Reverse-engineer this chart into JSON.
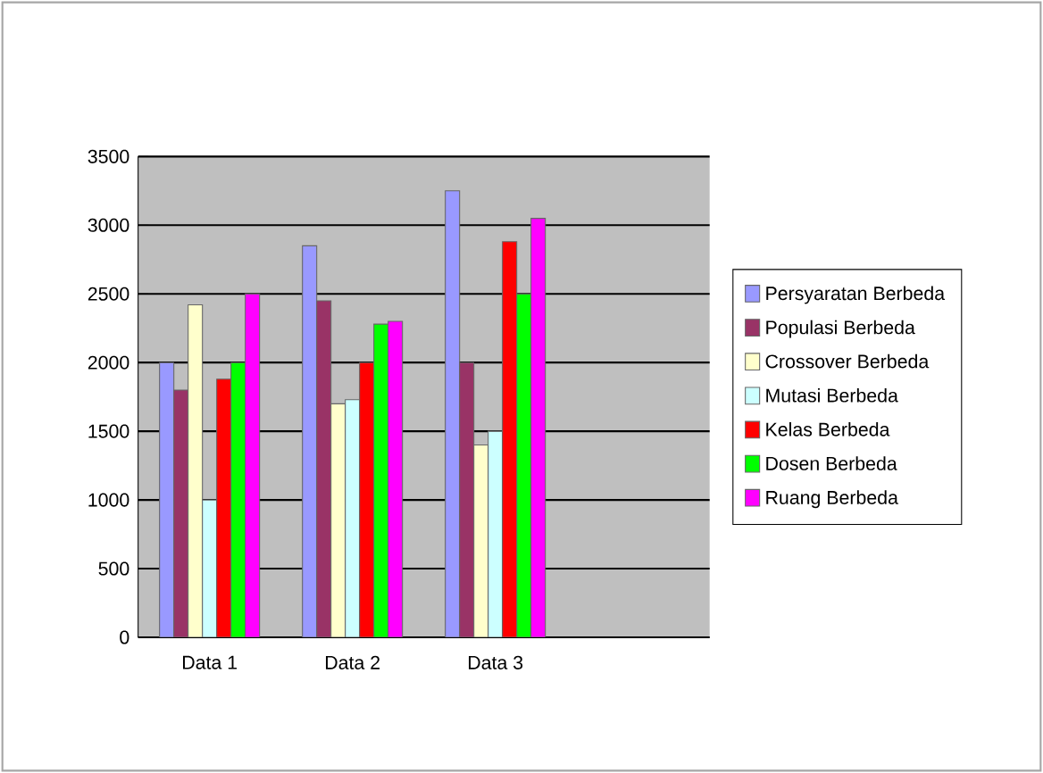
{
  "chart_data": {
    "type": "bar",
    "categories": [
      "Data 1",
      "Data 2",
      "Data 3",
      null
    ],
    "series": [
      {
        "name": "Persyaratan Berbeda",
        "color": "#9999ff",
        "values": [
          2000,
          2850,
          3250,
          null
        ]
      },
      {
        "name": "Populasi Berbeda",
        "color": "#993366",
        "values": [
          1800,
          2450,
          2000,
          null
        ]
      },
      {
        "name": "Crossover Berbeda",
        "color": "#ffffcc",
        "values": [
          2420,
          1700,
          1400,
          null
        ]
      },
      {
        "name": "Mutasi Berbeda",
        "color": "#ccffff",
        "values": [
          1000,
          1730,
          1500,
          null
        ]
      },
      {
        "name": "Kelas Berbeda",
        "color": "#ff0000",
        "values": [
          1880,
          2000,
          2880,
          null
        ]
      },
      {
        "name": "Dosen Berbeda",
        "color": "#00ff00",
        "values": [
          2000,
          2280,
          2500,
          null
        ]
      },
      {
        "name": "Ruang Berbeda",
        "color": "#ff00ff",
        "values": [
          2500,
          2300,
          3050,
          null
        ]
      }
    ],
    "ylim": [
      0,
      3500
    ],
    "yticks": [
      0,
      500,
      1000,
      1500,
      2000,
      2500,
      3000,
      3500
    ],
    "grid": "y",
    "legend": "right"
  }
}
